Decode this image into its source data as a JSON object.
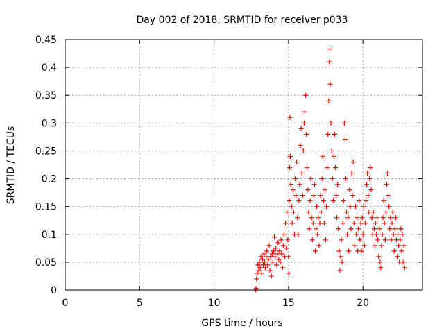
{
  "chart_data": {
    "type": "scatter",
    "title": "Day 002 of 2018, SRMTID for receiver p033",
    "xlabel": "GPS time / hours",
    "ylabel": "SRMTID / TECUs",
    "xlim": [
      0,
      24
    ],
    "ylim": [
      0,
      0.45
    ],
    "xticks": [
      0,
      5,
      10,
      15,
      20
    ],
    "xtick_labels": [
      "0",
      "5",
      "10",
      "15",
      "20"
    ],
    "yticks": [
      0,
      0.05,
      0.1,
      0.15,
      0.2,
      0.25,
      0.3,
      0.35,
      0.4,
      0.45
    ],
    "ytick_labels": [
      "0",
      "0.05",
      "0.1",
      "0.15",
      "0.2",
      "0.25",
      "0.3",
      "0.35",
      "0.4",
      "0.45"
    ],
    "grid": true,
    "marker": "plus",
    "color": "#ff0000",
    "series": [
      {
        "name": "SRMTID",
        "points": [
          [
            12.8,
            0.0
          ],
          [
            12.82,
            0.003
          ],
          [
            12.85,
            0.02
          ],
          [
            12.9,
            0.03
          ],
          [
            12.95,
            0.045
          ],
          [
            13.0,
            0.035
          ],
          [
            13.05,
            0.05
          ],
          [
            13.1,
            0.04
          ],
          [
            13.15,
            0.06
          ],
          [
            13.2,
            0.03
          ],
          [
            13.25,
            0.055
          ],
          [
            13.3,
            0.045
          ],
          [
            13.35,
            0.065
          ],
          [
            13.4,
            0.05
          ],
          [
            13.45,
            0.04
          ],
          [
            13.5,
            0.06
          ],
          [
            13.55,
            0.07
          ],
          [
            13.6,
            0.045
          ],
          [
            13.65,
            0.055
          ],
          [
            13.7,
            0.08
          ],
          [
            13.75,
            0.035
          ],
          [
            13.8,
            0.06
          ],
          [
            13.85,
            0.025
          ],
          [
            13.9,
            0.065
          ],
          [
            13.95,
            0.05
          ],
          [
            14.0,
            0.07
          ],
          [
            14.05,
            0.095
          ],
          [
            14.1,
            0.06
          ],
          [
            14.15,
            0.075
          ],
          [
            14.2,
            0.045
          ],
          [
            14.25,
            0.065
          ],
          [
            14.3,
            0.085
          ],
          [
            14.35,
            0.055
          ],
          [
            14.4,
            0.07
          ],
          [
            14.45,
            0.05
          ],
          [
            14.5,
            0.09
          ],
          [
            14.55,
            0.065
          ],
          [
            14.6,
            0.04
          ],
          [
            14.65,
            0.08
          ],
          [
            14.7,
            0.1
          ],
          [
            14.75,
            0.06
          ],
          [
            14.8,
            0.12
          ],
          [
            14.85,
            0.075
          ],
          [
            14.9,
            0.14
          ],
          [
            14.95,
            0.09
          ],
          [
            15.0,
            0.06
          ],
          [
            15.02,
            0.03
          ],
          [
            15.05,
            0.16
          ],
          [
            15.08,
            0.22
          ],
          [
            15.1,
            0.31
          ],
          [
            15.12,
            0.24
          ],
          [
            15.15,
            0.19
          ],
          [
            15.2,
            0.15
          ],
          [
            15.25,
            0.12
          ],
          [
            15.3,
            0.18
          ],
          [
            15.35,
            0.14
          ],
          [
            15.4,
            0.1
          ],
          [
            15.45,
            0.2
          ],
          [
            15.5,
            0.17
          ],
          [
            15.55,
            0.23
          ],
          [
            15.6,
            0.13
          ],
          [
            15.65,
            0.1
          ],
          [
            15.7,
            0.16
          ],
          [
            15.75,
            0.19
          ],
          [
            15.8,
            0.26
          ],
          [
            15.85,
            0.29
          ],
          [
            15.9,
            0.21
          ],
          [
            15.95,
            0.17
          ],
          [
            16.0,
            0.25
          ],
          [
            16.05,
            0.3
          ],
          [
            16.1,
            0.32
          ],
          [
            16.15,
            0.35
          ],
          [
            16.2,
            0.28
          ],
          [
            16.25,
            0.22
          ],
          [
            16.3,
            0.18
          ],
          [
            16.35,
            0.14
          ],
          [
            16.4,
            0.11
          ],
          [
            16.45,
            0.16
          ],
          [
            16.5,
            0.2
          ],
          [
            16.55,
            0.13
          ],
          [
            16.6,
            0.09
          ],
          [
            16.65,
            0.12
          ],
          [
            16.7,
            0.17
          ],
          [
            16.75,
            0.19
          ],
          [
            16.8,
            0.07
          ],
          [
            16.85,
            0.11
          ],
          [
            16.9,
            0.15
          ],
          [
            16.95,
            0.1
          ],
          [
            17.0,
            0.13
          ],
          [
            17.05,
            0.08
          ],
          [
            17.1,
            0.12
          ],
          [
            17.15,
            0.17
          ],
          [
            17.2,
            0.14
          ],
          [
            17.25,
            0.2
          ],
          [
            17.3,
            0.24
          ],
          [
            17.35,
            0.16
          ],
          [
            17.4,
            0.12
          ],
          [
            17.45,
            0.18
          ],
          [
            17.5,
            0.09
          ],
          [
            17.55,
            0.15
          ],
          [
            17.6,
            0.22
          ],
          [
            17.65,
            0.28
          ],
          [
            17.7,
            0.34
          ],
          [
            17.75,
            0.41
          ],
          [
            17.78,
            0.433
          ],
          [
            17.8,
            0.37
          ],
          [
            17.85,
            0.3
          ],
          [
            17.9,
            0.25
          ],
          [
            17.95,
            0.2
          ],
          [
            18.0,
            0.16
          ],
          [
            18.05,
            0.24
          ],
          [
            18.1,
            0.28
          ],
          [
            18.15,
            0.22
          ],
          [
            18.2,
            0.17
          ],
          [
            18.25,
            0.13
          ],
          [
            18.3,
            0.19
          ],
          [
            18.35,
            0.11
          ],
          [
            18.4,
            0.07
          ],
          [
            18.45,
            0.035
          ],
          [
            18.5,
            0.06
          ],
          [
            18.55,
            0.09
          ],
          [
            18.6,
            0.05
          ],
          [
            18.65,
            0.12
          ],
          [
            18.7,
            0.16
          ],
          [
            18.75,
            0.3
          ],
          [
            18.8,
            0.27
          ],
          [
            18.85,
            0.2
          ],
          [
            18.9,
            0.14
          ],
          [
            18.95,
            0.1
          ],
          [
            19.0,
            0.13
          ],
          [
            19.05,
            0.07
          ],
          [
            19.1,
            0.18
          ],
          [
            19.15,
            0.15
          ],
          [
            19.2,
            0.11
          ],
          [
            19.25,
            0.21
          ],
          [
            19.3,
            0.17
          ],
          [
            19.35,
            0.23
          ],
          [
            19.4,
            0.12
          ],
          [
            19.45,
            0.08
          ],
          [
            19.5,
            0.15
          ],
          [
            19.55,
            0.1
          ],
          [
            19.6,
            0.13
          ],
          [
            19.65,
            0.07
          ],
          [
            19.7,
            0.11
          ],
          [
            19.75,
            0.16
          ],
          [
            19.8,
            0.09
          ],
          [
            19.85,
            0.12
          ],
          [
            19.9,
            0.07
          ],
          [
            19.95,
            0.13
          ],
          [
            20.0,
            0.1
          ],
          [
            20.05,
            0.15
          ],
          [
            20.1,
            0.08
          ],
          [
            20.15,
            0.12
          ],
          [
            20.2,
            0.16
          ],
          [
            20.25,
            0.19
          ],
          [
            20.3,
            0.21
          ],
          [
            20.35,
            0.17
          ],
          [
            20.4,
            0.14
          ],
          [
            20.45,
            0.2
          ],
          [
            20.5,
            0.22
          ],
          [
            20.55,
            0.18
          ],
          [
            20.6,
            0.13
          ],
          [
            20.65,
            0.1
          ],
          [
            20.7,
            0.14
          ],
          [
            20.75,
            0.11
          ],
          [
            20.8,
            0.08
          ],
          [
            20.85,
            0.12
          ],
          [
            20.9,
            0.1
          ],
          [
            20.95,
            0.13
          ],
          [
            21.0,
            0.09
          ],
          [
            21.05,
            0.06
          ],
          [
            21.1,
            0.11
          ],
          [
            21.15,
            0.05
          ],
          [
            21.2,
            0.04
          ],
          [
            21.25,
            0.08
          ],
          [
            21.3,
            0.1
          ],
          [
            21.35,
            0.13
          ],
          [
            21.4,
            0.16
          ],
          [
            21.45,
            0.12
          ],
          [
            21.5,
            0.09
          ],
          [
            21.55,
            0.14
          ],
          [
            21.6,
            0.19
          ],
          [
            21.65,
            0.21
          ],
          [
            21.7,
            0.17
          ],
          [
            21.75,
            0.15
          ],
          [
            21.8,
            0.11
          ],
          [
            21.85,
            0.13
          ],
          [
            21.9,
            0.09
          ],
          [
            21.95,
            0.12
          ],
          [
            22.0,
            0.14
          ],
          [
            22.05,
            0.1
          ],
          [
            22.1,
            0.07
          ],
          [
            22.15,
            0.11
          ],
          [
            22.2,
            0.13
          ],
          [
            22.25,
            0.09
          ],
          [
            22.3,
            0.06
          ],
          [
            22.35,
            0.1
          ],
          [
            22.4,
            0.08
          ],
          [
            22.45,
            0.05
          ],
          [
            22.5,
            0.09
          ],
          [
            22.55,
            0.11
          ],
          [
            22.6,
            0.07
          ],
          [
            22.65,
            0.1
          ],
          [
            22.7,
            0.05
          ],
          [
            22.75,
            0.08
          ],
          [
            22.8,
            0.04
          ]
        ]
      }
    ]
  }
}
